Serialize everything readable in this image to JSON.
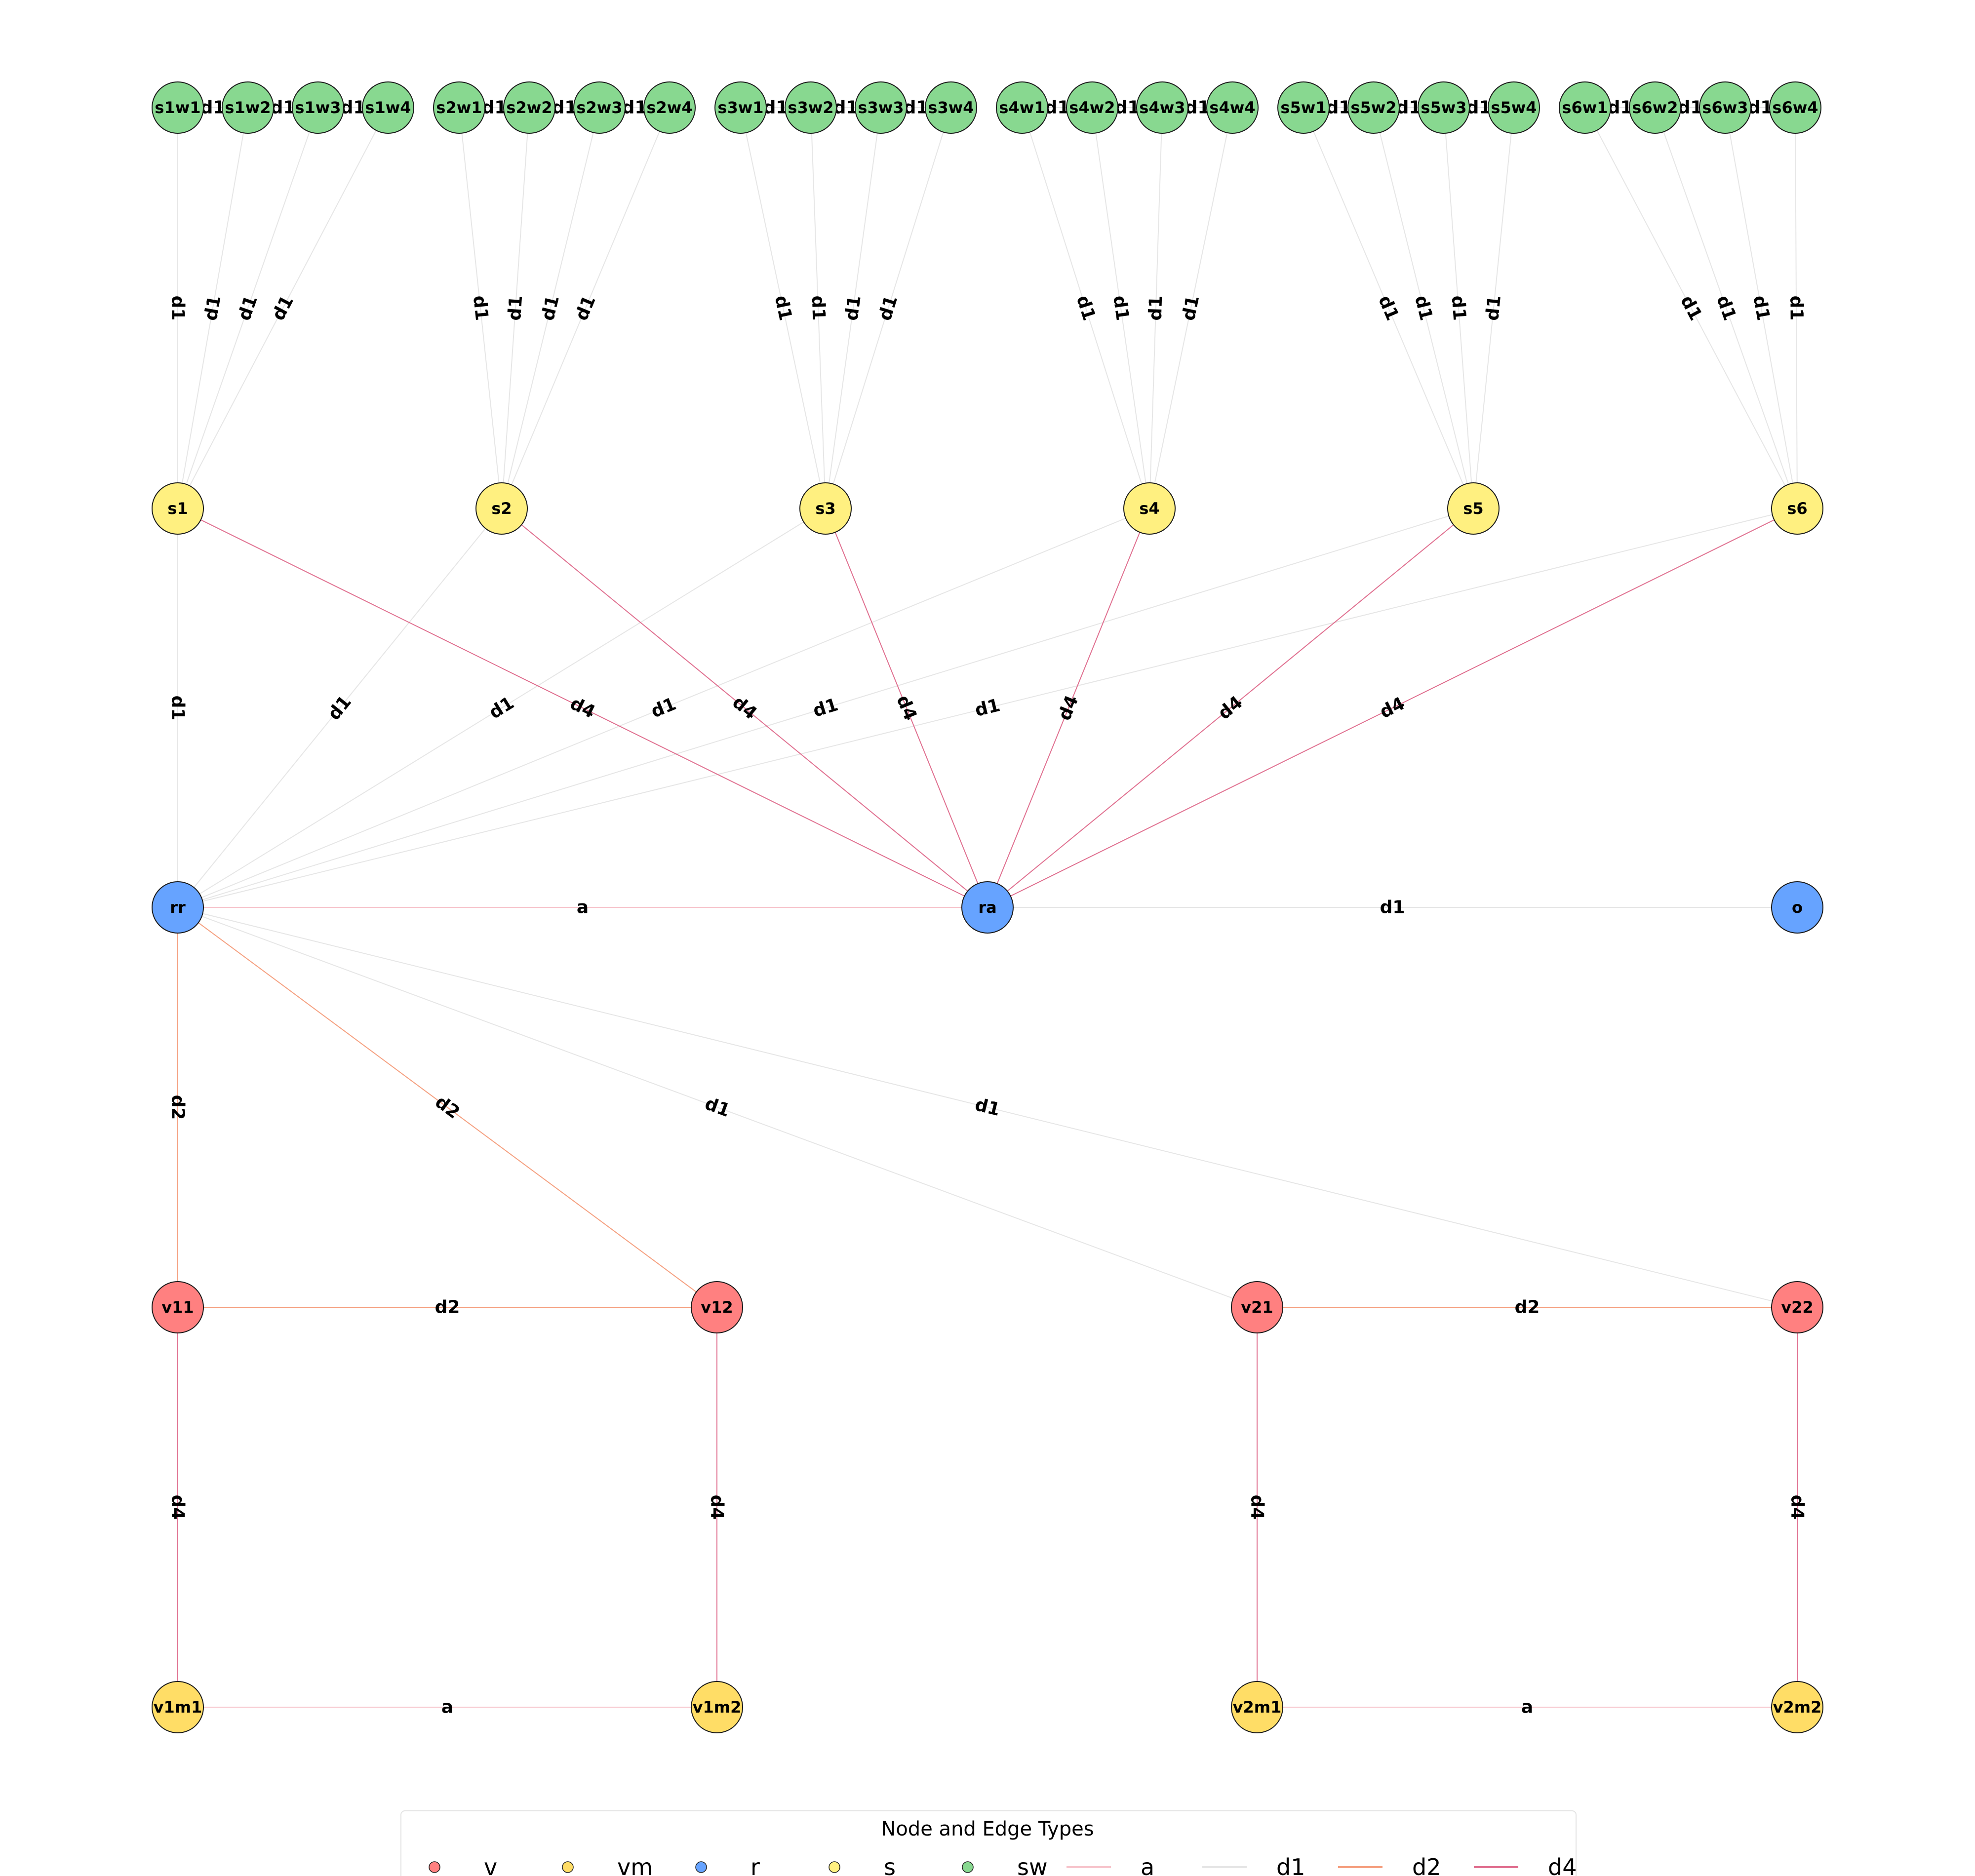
{
  "node_types": {
    "v": {
      "label": "v",
      "color": "#ff8080"
    },
    "vm": {
      "label": "vm",
      "color": "#ffdd66"
    },
    "r": {
      "label": "r",
      "color": "#66a3ff"
    },
    "s": {
      "label": "s",
      "color": "#fff080"
    },
    "sw": {
      "label": "sw",
      "color": "#88d890"
    }
  },
  "edge_types": {
    "a": {
      "label": "a",
      "color": "#f7c5cc"
    },
    "d1": {
      "label": "d1",
      "color": "#e6e6e6"
    },
    "d2": {
      "label": "d2",
      "color": "#f5a080"
    },
    "d4": {
      "label": "d4",
      "color": "#e07090"
    }
  },
  "nodes": [
    {
      "id": "s1w1",
      "type": "sw"
    },
    {
      "id": "s1w2",
      "type": "sw"
    },
    {
      "id": "s1w3",
      "type": "sw"
    },
    {
      "id": "s1w4",
      "type": "sw"
    },
    {
      "id": "s2w1",
      "type": "sw"
    },
    {
      "id": "s2w2",
      "type": "sw"
    },
    {
      "id": "s2w3",
      "type": "sw"
    },
    {
      "id": "s2w4",
      "type": "sw"
    },
    {
      "id": "s3w1",
      "type": "sw"
    },
    {
      "id": "s3w2",
      "type": "sw"
    },
    {
      "id": "s3w3",
      "type": "sw"
    },
    {
      "id": "s3w4",
      "type": "sw"
    },
    {
      "id": "s4w1",
      "type": "sw"
    },
    {
      "id": "s4w2",
      "type": "sw"
    },
    {
      "id": "s4w3",
      "type": "sw"
    },
    {
      "id": "s4w4",
      "type": "sw"
    },
    {
      "id": "s5w1",
      "type": "sw"
    },
    {
      "id": "s5w2",
      "type": "sw"
    },
    {
      "id": "s5w3",
      "type": "sw"
    },
    {
      "id": "s5w4",
      "type": "sw"
    },
    {
      "id": "s6w1",
      "type": "sw"
    },
    {
      "id": "s6w2",
      "type": "sw"
    },
    {
      "id": "s6w3",
      "type": "sw"
    },
    {
      "id": "s6w4",
      "type": "sw"
    },
    {
      "id": "s1",
      "type": "s"
    },
    {
      "id": "s2",
      "type": "s"
    },
    {
      "id": "s3",
      "type": "s"
    },
    {
      "id": "s4",
      "type": "s"
    },
    {
      "id": "s5",
      "type": "s"
    },
    {
      "id": "s6",
      "type": "s"
    },
    {
      "id": "rr",
      "type": "r"
    },
    {
      "id": "ra",
      "type": "r"
    },
    {
      "id": "o",
      "type": "r"
    },
    {
      "id": "v11",
      "type": "v"
    },
    {
      "id": "v12",
      "type": "v"
    },
    {
      "id": "v21",
      "type": "v"
    },
    {
      "id": "v22",
      "type": "v"
    },
    {
      "id": "v1m1",
      "type": "vm"
    },
    {
      "id": "v1m2",
      "type": "vm"
    },
    {
      "id": "v2m1",
      "type": "vm"
    },
    {
      "id": "v2m2",
      "type": "vm"
    }
  ],
  "edges": [
    {
      "source": "s1w1",
      "target": "s1",
      "type": "d1",
      "label": "d1"
    },
    {
      "source": "s1w2",
      "target": "s1",
      "type": "d1",
      "label": "d1"
    },
    {
      "source": "s1w3",
      "target": "s1",
      "type": "d1",
      "label": "d1"
    },
    {
      "source": "s1w4",
      "target": "s1",
      "type": "d1",
      "label": "d1"
    },
    {
      "source": "s2w1",
      "target": "s2",
      "type": "d1",
      "label": "d1"
    },
    {
      "source": "s2w2",
      "target": "s2",
      "type": "d1",
      "label": "d1"
    },
    {
      "source": "s2w3",
      "target": "s2",
      "type": "d1",
      "label": "d1"
    },
    {
      "source": "s2w4",
      "target": "s2",
      "type": "d1",
      "label": "d1"
    },
    {
      "source": "s3w1",
      "target": "s3",
      "type": "d1",
      "label": "d1"
    },
    {
      "source": "s3w2",
      "target": "s3",
      "type": "d1",
      "label": "d1"
    },
    {
      "source": "s3w3",
      "target": "s3",
      "type": "d1",
      "label": "d1"
    },
    {
      "source": "s3w4",
      "target": "s3",
      "type": "d1",
      "label": "d1"
    },
    {
      "source": "s4w1",
      "target": "s4",
      "type": "d1",
      "label": "d1"
    },
    {
      "source": "s4w2",
      "target": "s4",
      "type": "d1",
      "label": "d1"
    },
    {
      "source": "s4w3",
      "target": "s4",
      "type": "d1",
      "label": "d1"
    },
    {
      "source": "s4w4",
      "target": "s4",
      "type": "d1",
      "label": "d1"
    },
    {
      "source": "s5w1",
      "target": "s5",
      "type": "d1",
      "label": "d1"
    },
    {
      "source": "s5w2",
      "target": "s5",
      "type": "d1",
      "label": "d1"
    },
    {
      "source": "s5w3",
      "target": "s5",
      "type": "d1",
      "label": "d1"
    },
    {
      "source": "s5w4",
      "target": "s5",
      "type": "d1",
      "label": "d1"
    },
    {
      "source": "s6w1",
      "target": "s6",
      "type": "d1",
      "label": "d1"
    },
    {
      "source": "s6w2",
      "target": "s6",
      "type": "d1",
      "label": "d1"
    },
    {
      "source": "s6w3",
      "target": "s6",
      "type": "d1",
      "label": "d1"
    },
    {
      "source": "s6w4",
      "target": "s6",
      "type": "d1",
      "label": "d1"
    },
    {
      "source": "s1w1",
      "target": "s1w2",
      "type": "d1",
      "label": "d1"
    },
    {
      "source": "s1w2",
      "target": "s1w3",
      "type": "d1",
      "label": "d1"
    },
    {
      "source": "s1w3",
      "target": "s1w4",
      "type": "d1",
      "label": "d1"
    },
    {
      "source": "s2w1",
      "target": "s2w2",
      "type": "d1",
      "label": "d1"
    },
    {
      "source": "s2w2",
      "target": "s2w3",
      "type": "d1",
      "label": "d1"
    },
    {
      "source": "s2w3",
      "target": "s2w4",
      "type": "d1",
      "label": "d1"
    },
    {
      "source": "s3w1",
      "target": "s3w2",
      "type": "d1",
      "label": "d1"
    },
    {
      "source": "s3w2",
      "target": "s3w3",
      "type": "d1",
      "label": "d1"
    },
    {
      "source": "s3w3",
      "target": "s3w4",
      "type": "d1",
      "label": "d1"
    },
    {
      "source": "s4w1",
      "target": "s4w2",
      "type": "d1",
      "label": "d1"
    },
    {
      "source": "s4w2",
      "target": "s4w3",
      "type": "d1",
      "label": "d1"
    },
    {
      "source": "s4w3",
      "target": "s4w4",
      "type": "d1",
      "label": "d1"
    },
    {
      "source": "s5w1",
      "target": "s5w2",
      "type": "d1",
      "label": "d1"
    },
    {
      "source": "s5w2",
      "target": "s5w3",
      "type": "d1",
      "label": "d1"
    },
    {
      "source": "s5w3",
      "target": "s5w4",
      "type": "d1",
      "label": "d1"
    },
    {
      "source": "s6w1",
      "target": "s6w2",
      "type": "d1",
      "label": "d1"
    },
    {
      "source": "s6w2",
      "target": "s6w3",
      "type": "d1",
      "label": "d1"
    },
    {
      "source": "s6w3",
      "target": "s6w4",
      "type": "d1",
      "label": "d1"
    },
    {
      "source": "s1",
      "target": "rr",
      "type": "d1",
      "label": "d1"
    },
    {
      "source": "s2",
      "target": "rr",
      "type": "d1",
      "label": "d1"
    },
    {
      "source": "s3",
      "target": "rr",
      "type": "d1",
      "label": "d1"
    },
    {
      "source": "s4",
      "target": "rr",
      "type": "d1",
      "label": "d1"
    },
    {
      "source": "s5",
      "target": "rr",
      "type": "d1",
      "label": "d1"
    },
    {
      "source": "s6",
      "target": "rr",
      "type": "d1",
      "label": "d1"
    },
    {
      "source": "s1",
      "target": "ra",
      "type": "d4",
      "label": "d4"
    },
    {
      "source": "s2",
      "target": "ra",
      "type": "d4",
      "label": "d4"
    },
    {
      "source": "s3",
      "target": "ra",
      "type": "d4",
      "label": "d4"
    },
    {
      "source": "s4",
      "target": "ra",
      "type": "d4",
      "label": "d4"
    },
    {
      "source": "s5",
      "target": "ra",
      "type": "d4",
      "label": "d4"
    },
    {
      "source": "s6",
      "target": "ra",
      "type": "d4",
      "label": "d4"
    },
    {
      "source": "rr",
      "target": "ra",
      "type": "a",
      "label": "a"
    },
    {
      "source": "ra",
      "target": "o",
      "type": "d1",
      "label": "d1"
    },
    {
      "source": "rr",
      "target": "v11",
      "type": "d2",
      "label": "d2"
    },
    {
      "source": "rr",
      "target": "v12",
      "type": "d2",
      "label": "d2"
    },
    {
      "source": "rr",
      "target": "v21",
      "type": "d1",
      "label": "d1"
    },
    {
      "source": "rr",
      "target": "v22",
      "type": "d1",
      "label": "d1"
    },
    {
      "source": "v11",
      "target": "v12",
      "type": "d2",
      "label": "d2"
    },
    {
      "source": "v21",
      "target": "v22",
      "type": "d2",
      "label": "d2"
    },
    {
      "source": "v11",
      "target": "v1m1",
      "type": "d4",
      "label": "d4"
    },
    {
      "source": "v12",
      "target": "v1m2",
      "type": "d4",
      "label": "d4"
    },
    {
      "source": "v21",
      "target": "v2m1",
      "type": "d4",
      "label": "d4"
    },
    {
      "source": "v22",
      "target": "v2m2",
      "type": "d4",
      "label": "d4"
    },
    {
      "source": "v1m1",
      "target": "v1m2",
      "type": "a",
      "label": "a"
    },
    {
      "source": "v2m1",
      "target": "v2m2",
      "type": "a",
      "label": "a"
    }
  ],
  "legend": {
    "title": "Node and Edge Types",
    "node_entries": [
      "v",
      "vm",
      "r",
      "s",
      "sw"
    ],
    "edge_entries": [
      "a",
      "d1",
      "d2",
      "d4"
    ]
  }
}
